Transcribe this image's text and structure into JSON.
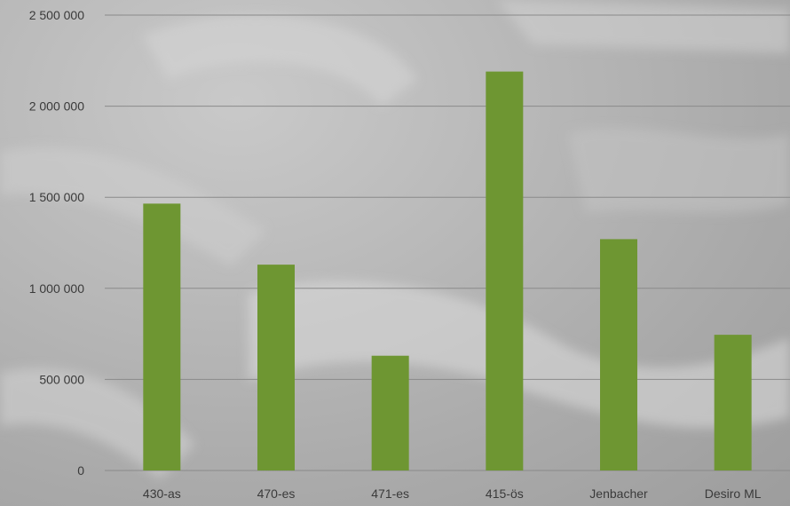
{
  "colors": {
    "bar": "#6e9632",
    "grid": "#8a8a8a",
    "text": "#3a3a3a"
  },
  "chart_data": {
    "type": "bar",
    "categories": [
      "430-as",
      "470-es",
      "471-es",
      "415-ös",
      "Jenbacher",
      "Desiro ML"
    ],
    "values": [
      1465000,
      1130000,
      630000,
      2190000,
      1270000,
      745000
    ],
    "ylim": [
      0,
      2500000
    ],
    "yticks": [
      0,
      500000,
      1000000,
      1500000,
      2000000,
      2500000
    ],
    "ytick_labels": [
      "0",
      "500 000",
      "1 000 000",
      "1 500 000",
      "2 000 000",
      "2 500 000"
    ],
    "grid": true,
    "legend": "none"
  }
}
